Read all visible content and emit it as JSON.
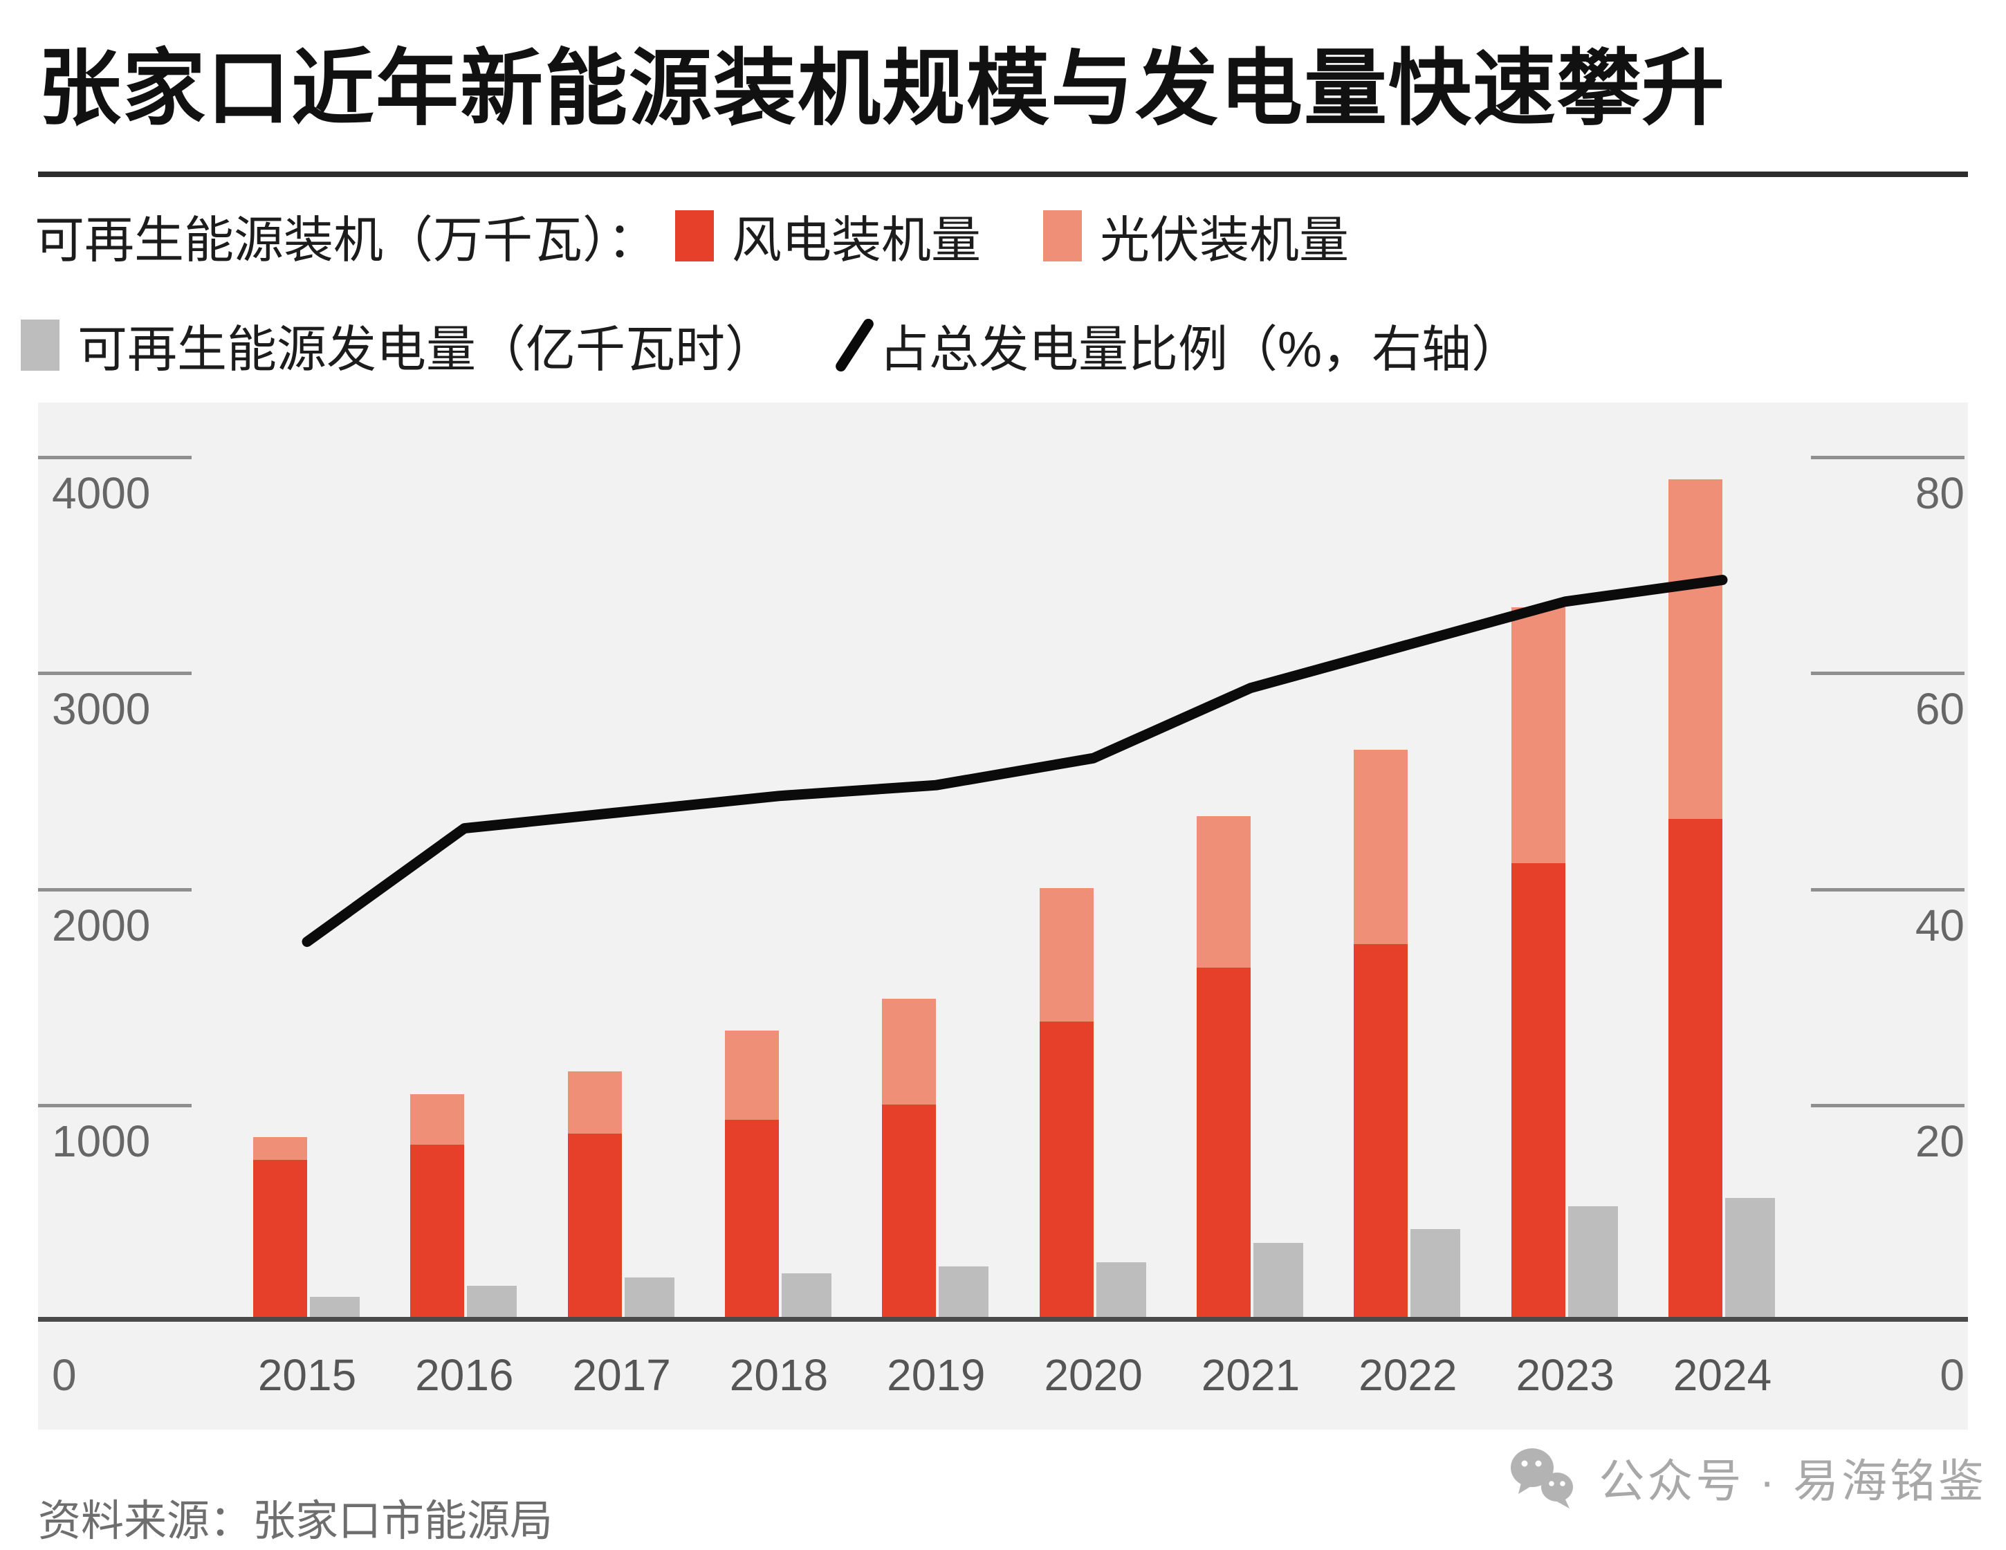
{
  "title": "张家口近年新能源装机规模与发电量快速攀升",
  "legend": {
    "capacity_prefix": "可再生能源装机（万千瓦）：",
    "wind_label": "风电装机量",
    "solar_label": "光伏装机量",
    "generation_label": "可再生能源发电量（亿千瓦时）",
    "share_label": "占总发电量比例（%，右轴）"
  },
  "source": "资料来源：张家口市能源局",
  "watermark": "公众号 · 易海铭鉴",
  "colors": {
    "wind": "#e7402a",
    "solar": "#ef8f78",
    "generation": "#bdbdbd",
    "share_line": "#0b0b0b",
    "plot_background": "#f3f2f2",
    "axis_line": "#4a4a4a",
    "tick_line": "#8f8f8f",
    "tick_text": "#666666",
    "watermark_gray": "#a8a8a8"
  },
  "chart_data": {
    "type": "bar",
    "subtype": "stacked-bars-with-line",
    "categories": [
      "2015",
      "2016",
      "2017",
      "2018",
      "2019",
      "2020",
      "2021",
      "2022",
      "2023",
      "2024"
    ],
    "series": [
      {
        "name": "风电装机量",
        "type": "bar",
        "stack": "capacity",
        "unit": "万千瓦",
        "values": [
          740,
          810,
          860,
          925,
          995,
          1380,
          1630,
          1740,
          2115,
          2320
        ]
      },
      {
        "name": "光伏装机量",
        "type": "bar",
        "stack": "capacity",
        "unit": "万千瓦",
        "values": [
          105,
          235,
          290,
          415,
          490,
          620,
          700,
          900,
          1185,
          1570
        ]
      },
      {
        "name": "可再生能源发电量",
        "type": "bar",
        "unit": "亿千瓦时",
        "values": [
          105,
          158,
          196,
          215,
          245,
          267,
          356,
          418,
          525,
          565
        ]
      },
      {
        "name": "占总发电量比例",
        "type": "line",
        "axis": "right",
        "unit": "%",
        "values": [
          35,
          45.5,
          47,
          48.5,
          49.5,
          52,
          58.5,
          62.5,
          66.5,
          68.5
        ]
      }
    ],
    "left_axis": {
      "ticks": [
        4000,
        3000,
        2000,
        1000,
        0
      ],
      "min": 0,
      "max": 4000
    },
    "right_axis": {
      "ticks": [
        80,
        60,
        40,
        20,
        0
      ],
      "min": 0,
      "max": 80
    },
    "grid": "ticks-only",
    "legend_position": "top"
  }
}
